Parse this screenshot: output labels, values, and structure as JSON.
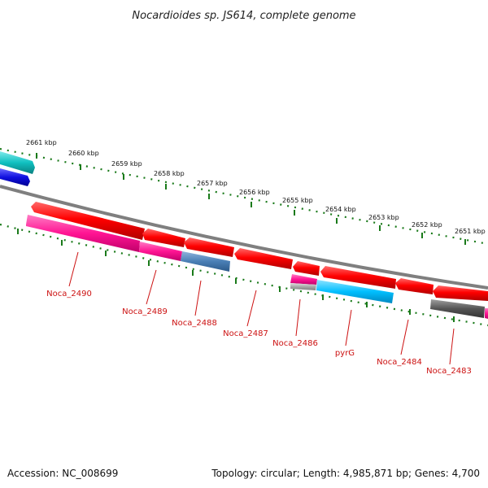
{
  "title": "Nocardioides sp. JS614, complete genome",
  "footer": {
    "accession": "Accession: NC_008699",
    "topology": "Topology: circular; Length: 4,985,871 bp; Genes: 4,700"
  },
  "scale_labels": [
    "2661 kbp",
    "2660 kbp",
    "2659 kbp",
    "2658 kbp",
    "2657 kbp",
    "2656 kbp",
    "2655 kbp",
    "2654 kbp",
    "2653 kbp",
    "2652 kbp",
    "2651 kbp"
  ],
  "gene_labels": [
    "Noca_2490",
    "Noca_2489",
    "Noca_2488",
    "Noca_2487",
    "Noca_2486",
    "pyrG",
    "Noca_2484",
    "Noca_2483"
  ],
  "colors": {
    "backbone": "#7f7f7f",
    "ticks": "#1a7a1a",
    "cds": "#ee0000",
    "label": "#cc1111",
    "magenta": "#ff1493",
    "steel": "#4a7fb5",
    "sky": "#00bfff",
    "teal": "#10c0c0",
    "blue": "#1010e0",
    "gray": "#555555",
    "silver": "#a0a0a0"
  }
}
